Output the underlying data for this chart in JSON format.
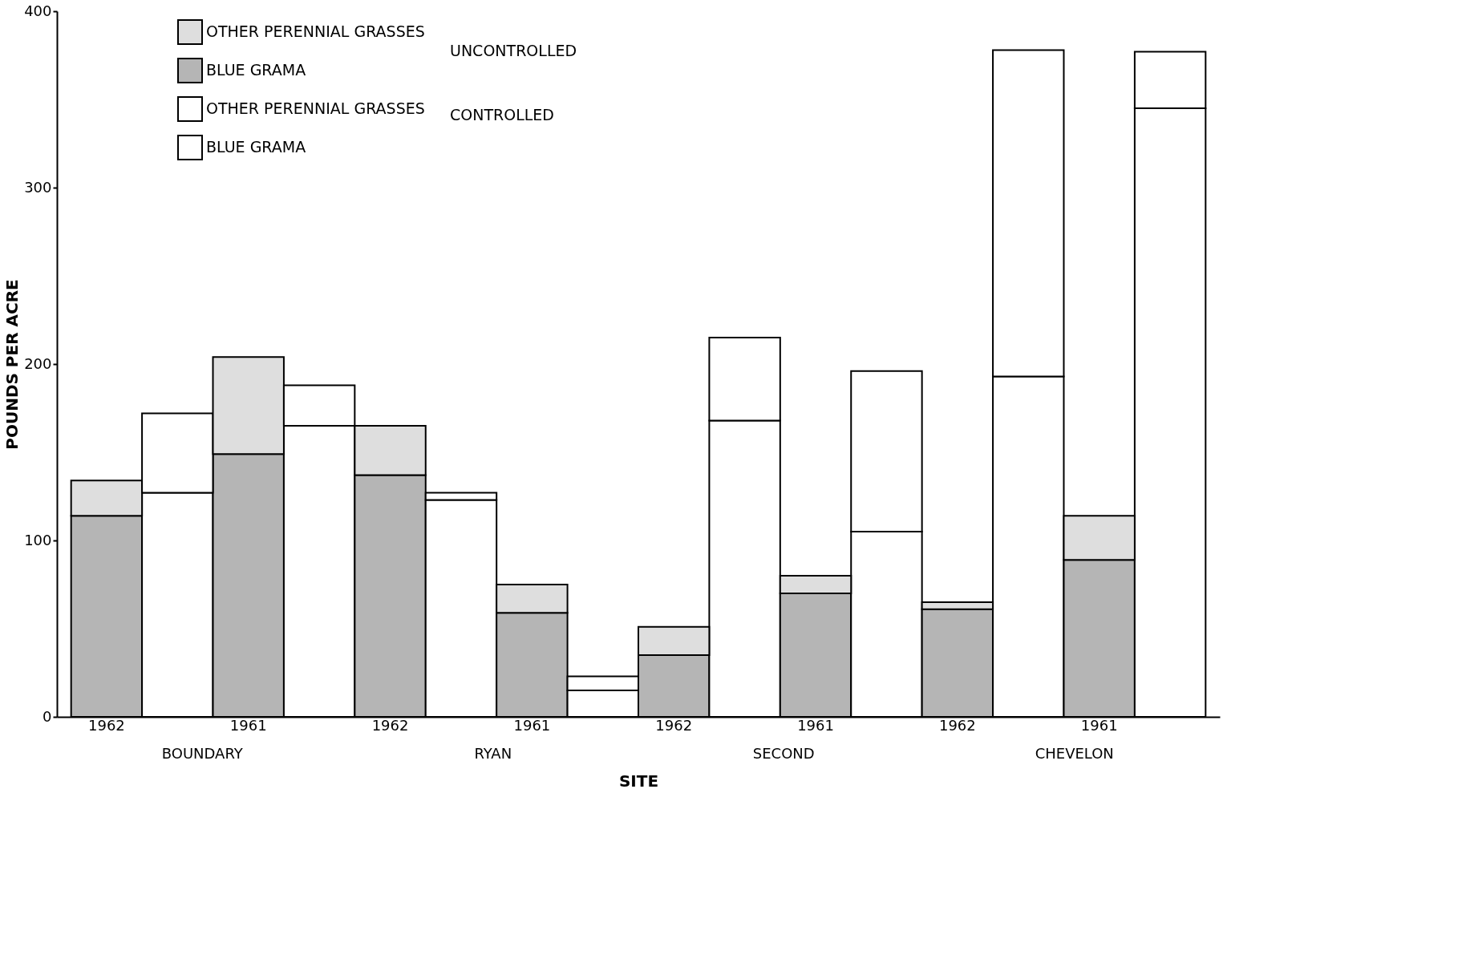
{
  "chart_data": {
    "type": "bar",
    "stacked": true,
    "xlabel": "SITE",
    "ylabel": "POUNDS PER ACRE",
    "categories": [
      "1962",
      null,
      "1961",
      null,
      "1962",
      null,
      "1961",
      null,
      "1962",
      null,
      "1961",
      null,
      "1962",
      null,
      "1961",
      null
    ],
    "series": [
      {
        "name": "BLUE GRAMA",
        "colors": [
          "#b5b5b5",
          "#ffffff",
          "#b5b5b5",
          "#ffffff",
          "#b5b5b5",
          "#ffffff",
          "#b5b5b5",
          "#ffffff",
          "#b5b5b5",
          "#ffffff",
          "#b5b5b5",
          "#ffffff",
          "#b5b5b5",
          "#ffffff",
          "#b5b5b5",
          "#ffffff"
        ],
        "values": [
          114,
          127,
          149,
          165,
          137,
          123,
          59,
          15,
          35,
          168,
          70,
          105,
          61,
          193,
          89,
          345
        ]
      },
      {
        "name": "OTHER PERENNIAL GRASSES",
        "colors": [
          "#dedede",
          "#ffffff",
          "#dedede",
          "#ffffff",
          "#dedede",
          "#ffffff",
          "#dedede",
          "#ffffff",
          "#dedede",
          "#ffffff",
          "#dedede",
          "#ffffff",
          "#dedede",
          "#ffffff",
          "#dedede",
          "#ffffff"
        ],
        "values": [
          20,
          45,
          55,
          23,
          28,
          4,
          16,
          8,
          16,
          47,
          10,
          91,
          4,
          185,
          25,
          32
        ]
      }
    ],
    "annotations": [
      "BOUNDARY",
      "RYAN",
      "SECOND",
      "CHEVELON",
      "UNCONTROLLED",
      "CONTROLLED"
    ],
    "ylim": [
      0,
      400
    ],
    "yticks": [
      0,
      100,
      200,
      300,
      400
    ],
    "grid": false,
    "legend": "top left"
  }
}
